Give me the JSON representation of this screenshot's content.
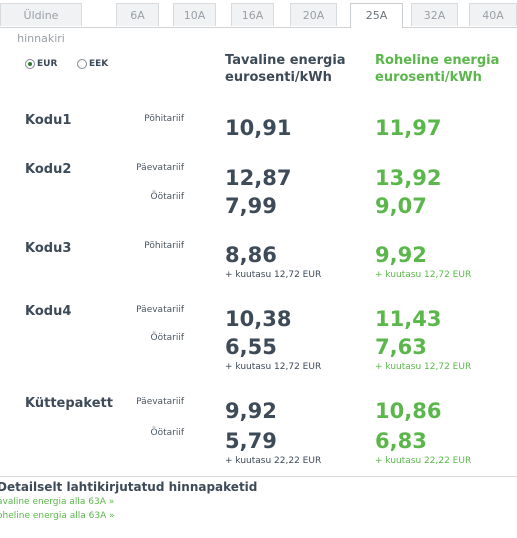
{
  "tabs": [
    "Üldine hinnakiri",
    "6A",
    "10A",
    "16A",
    "20A",
    "25A",
    "32A",
    "40A"
  ],
  "active_tab": "25A",
  "currency": {
    "options": [
      "EUR",
      "EEK"
    ],
    "selected": "EUR"
  },
  "headers": {
    "normal": [
      "Tavaline energia",
      "eurosenti/kWh"
    ],
    "green": [
      "Roheline energia",
      "eurosenti/kWh"
    ]
  },
  "packages": [
    {
      "name": "Kodu1",
      "rows": [
        {
          "tariff": "Põhitariif",
          "normal": "10,91",
          "green": "11,97"
        }
      ],
      "fee": null
    },
    {
      "name": "Kodu2",
      "rows": [
        {
          "tariff": "Päevatariif",
          "normal": "12,87",
          "green": "13,92"
        },
        {
          "tariff": "Öötariif",
          "normal": "7,99",
          "green": "9,07"
        }
      ],
      "fee": null
    },
    {
      "name": "Kodu3",
      "rows": [
        {
          "tariff": "Põhitariif",
          "normal": "8,86",
          "green": "9,92"
        }
      ],
      "fee": "+ kuutasu 12,72 EUR"
    },
    {
      "name": "Kodu4",
      "rows": [
        {
          "tariff": "Päevatariif",
          "normal": "10,38",
          "green": "11,43"
        },
        {
          "tariff": "Öötariif",
          "normal": "6,55",
          "green": "7,63"
        }
      ],
      "fee": "+ kuutasu 12,72 EUR"
    },
    {
      "name": "Küttepakett",
      "rows": [
        {
          "tariff": "Päevatariif",
          "normal": "9,92",
          "green": "10,86"
        },
        {
          "tariff": "Öötariif",
          "normal": "5,79",
          "green": "6,83"
        }
      ],
      "fee": "+ kuutasu 22,22 EUR"
    }
  ],
  "details": {
    "title": "Detailselt lahtikirjutatud hinnapaketid",
    "links": [
      "avaline energia alla 63A »",
      "oheline energia alla 63A »"
    ]
  },
  "colors": {
    "green": "#5bb74b",
    "text": "#3d4a57"
  }
}
